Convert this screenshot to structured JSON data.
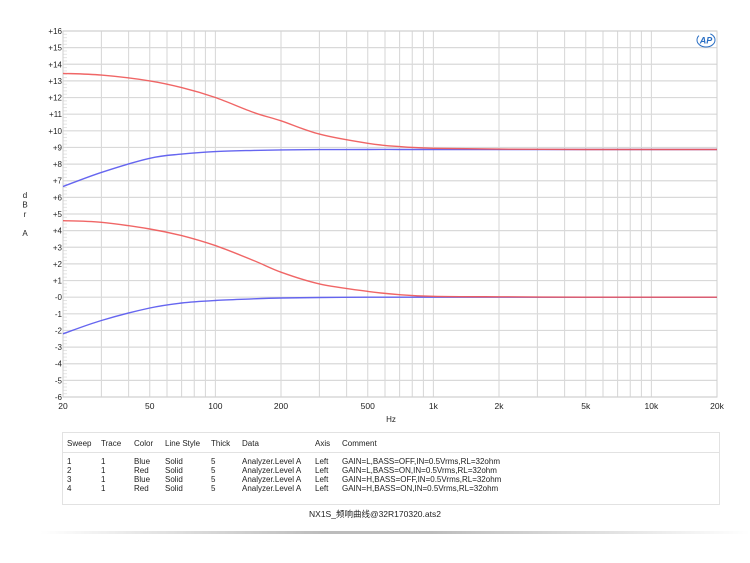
{
  "chart_data": {
    "type": "line",
    "title": "",
    "xlabel": "Hz",
    "ylabel": "dBr A",
    "xscale": "log",
    "xlim": [
      20,
      20000
    ],
    "ylim": [
      -6,
      16
    ],
    "grid": true,
    "x_tick_labels": [
      "20",
      "50",
      "100",
      "200",
      "500",
      "1k",
      "2k",
      "5k",
      "10k",
      "20k"
    ],
    "x_tick_values": [
      20,
      50,
      100,
      200,
      500,
      1000,
      2000,
      5000,
      10000,
      20000
    ],
    "y_tick_labels": [
      "+16",
      "+15",
      "+14",
      "+13",
      "+12",
      "+11",
      "+10",
      "+9",
      "+8",
      "+7",
      "+6",
      "+5",
      "+4",
      "+3",
      "+2",
      "+1",
      "-0",
      "-1",
      "-2",
      "-3",
      "-4",
      "-5",
      "-6"
    ],
    "x": [
      20,
      30,
      50,
      70,
      100,
      150,
      200,
      300,
      500,
      700,
      1000,
      2000,
      5000,
      10000,
      20000
    ],
    "series": [
      {
        "name": "Sweep 1 (Blue) GAIN=L,BASS=OFF",
        "color": "#5555ee",
        "values": [
          -2.2,
          -1.4,
          -0.65,
          -0.35,
          -0.2,
          -0.1,
          -0.05,
          -0.02,
          0.0,
          0.0,
          0.0,
          0.0,
          0.0,
          0.0,
          0.0
        ]
      },
      {
        "name": "Sweep 2 (Red) GAIN=L,BASS=ON",
        "color": "#ee5555",
        "values": [
          4.6,
          4.5,
          4.1,
          3.7,
          3.1,
          2.2,
          1.5,
          0.8,
          0.35,
          0.15,
          0.05,
          0.02,
          0.0,
          0.0,
          0.0
        ]
      },
      {
        "name": "Sweep 3 (Blue) GAIN=H,BASS=OFF",
        "color": "#5555ee",
        "values": [
          6.65,
          7.5,
          8.35,
          8.6,
          8.75,
          8.82,
          8.85,
          8.87,
          8.88,
          8.88,
          8.88,
          8.88,
          8.88,
          8.88,
          8.88
        ]
      },
      {
        "name": "Sweep 4 (Red) GAIN=H,BASS=ON",
        "color": "#ee5555",
        "values": [
          13.45,
          13.35,
          13.0,
          12.6,
          12.0,
          11.1,
          10.6,
          9.8,
          9.25,
          9.05,
          8.95,
          8.9,
          8.88,
          8.88,
          8.88
        ]
      }
    ]
  },
  "axes": {
    "y_label_lines": [
      "d",
      "B",
      "r",
      "",
      "A"
    ],
    "x_label": "Hz"
  },
  "logo": {
    "text": "AP",
    "color": "#2a6fc4"
  },
  "legend": {
    "headers": [
      "Sweep",
      "Trace",
      "Color",
      "Line Style",
      "Thick",
      "Data",
      "Axis",
      "Comment"
    ],
    "rows": [
      [
        "1",
        "1",
        "Blue",
        "Solid",
        "5",
        "Analyzer.Level A",
        "Left",
        "GAIN=L,BASS=OFF,IN=0.5Vrms,RL=32ohm"
      ],
      [
        "2",
        "1",
        "Red",
        "Solid",
        "5",
        "Analyzer.Level A",
        "Left",
        "GAIN=L,BASS=ON,IN=0.5Vrms,RL=32ohm"
      ],
      [
        "3",
        "1",
        "Blue",
        "Solid",
        "5",
        "Analyzer.Level A",
        "Left",
        "GAIN=H,BASS=OFF,IN=0.5Vrms,RL=32ohm"
      ],
      [
        "4",
        "1",
        "Red",
        "Solid",
        "5",
        "Analyzer.Level A",
        "Left",
        "GAIN=H,BASS=ON,IN=0.5Vrms,RL=32ohm"
      ]
    ]
  },
  "footer": {
    "filename": "NX1S_频响曲线@32R170320.ats2"
  }
}
